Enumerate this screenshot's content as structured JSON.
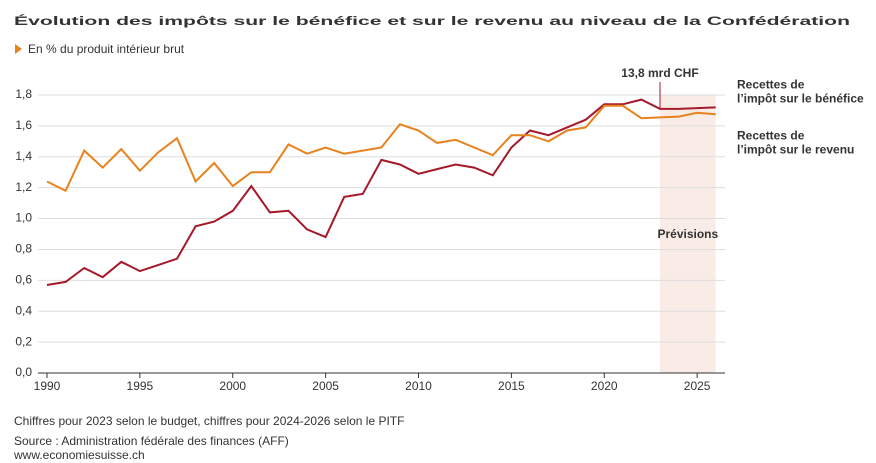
{
  "chart_data": {
    "type": "line",
    "title": "Évolution des impôts sur le bénéfice et sur le revenu au niveau de la Confédération",
    "subtitle": "En % du produit intérieur brut",
    "x": [
      1990,
      1991,
      1992,
      1993,
      1994,
      1995,
      1996,
      1997,
      1998,
      1999,
      2000,
      2001,
      2002,
      2003,
      2004,
      2005,
      2006,
      2007,
      2008,
      2009,
      2010,
      2011,
      2012,
      2013,
      2014,
      2015,
      2016,
      2017,
      2018,
      2019,
      2020,
      2021,
      2022,
      2023,
      2024,
      2025,
      2026
    ],
    "series": [
      {
        "name": "Recettes de\nl’impôt sur le bénéfice",
        "color": "#a5192a",
        "values": [
          0.57,
          0.59,
          0.68,
          0.62,
          0.72,
          0.66,
          0.7,
          0.74,
          0.95,
          0.98,
          1.05,
          1.21,
          1.04,
          1.05,
          0.93,
          0.88,
          1.14,
          1.16,
          1.38,
          1.35,
          1.29,
          1.32,
          1.35,
          1.33,
          1.28,
          1.46,
          1.57,
          1.54,
          1.59,
          1.64,
          1.74,
          1.74,
          1.77,
          1.71,
          1.71,
          1.715,
          1.72
        ]
      },
      {
        "name": "Recettes de\nl’impôt sur le revenu",
        "color": "#e8821e",
        "values": [
          1.24,
          1.18,
          1.44,
          1.33,
          1.45,
          1.31,
          1.43,
          1.52,
          1.24,
          1.36,
          1.21,
          1.3,
          1.3,
          1.48,
          1.42,
          1.46,
          1.42,
          1.44,
          1.46,
          1.61,
          1.57,
          1.49,
          1.51,
          1.46,
          1.41,
          1.54,
          1.54,
          1.5,
          1.57,
          1.59,
          1.73,
          1.73,
          1.65,
          1.655,
          1.66,
          1.685,
          1.675
        ]
      }
    ],
    "xlim": [
      1990,
      2026.5
    ],
    "xticks": [
      1990,
      1995,
      2000,
      2005,
      2010,
      2015,
      2020,
      2025
    ],
    "ylim": [
      0,
      1.8
    ],
    "yticks": [
      {
        "value": 0,
        "label": "0,0"
      },
      {
        "value": 0.2,
        "label": "0,2"
      },
      {
        "value": 0.4,
        "label": "0,4"
      },
      {
        "value": 0.6,
        "label": "0,6"
      },
      {
        "value": 0.8,
        "label": "0,8"
      },
      {
        "value": 1,
        "label": "1,0"
      },
      {
        "value": 1.2,
        "label": "1,2"
      },
      {
        "value": 1.4,
        "label": "1,4"
      },
      {
        "value": 1.6,
        "label": "1,6"
      },
      {
        "value": 1.8,
        "label": "1,8"
      }
    ],
    "grid": true,
    "forecast": {
      "from": 2023,
      "to": 2026,
      "label": "Prévisions",
      "color": "#f9ece6"
    },
    "annotation": {
      "text": "13,8 mrd CHF",
      "x": 2023
    },
    "note": "Chiffres pour 2023 selon le budget, chiffres pour 2024-2026 selon le PITF",
    "source": "Source : Administration fédérale des finances (AFF)",
    "website": "www.economiesuisse.ch"
  }
}
